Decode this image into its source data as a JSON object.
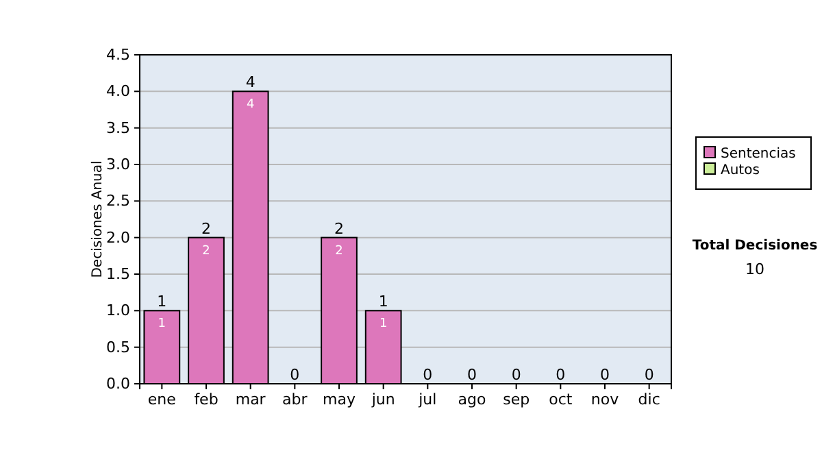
{
  "chart_data": {
    "type": "bar",
    "stacked": true,
    "ylabel": "Decisiones Anual",
    "categories": [
      "ene",
      "feb",
      "mar",
      "abr",
      "may",
      "jun",
      "jul",
      "ago",
      "sep",
      "oct",
      "nov",
      "dic"
    ],
    "series": [
      {
        "name": "Sentencias",
        "color": "#dd77bb",
        "values": [
          1,
          2,
          4,
          0,
          2,
          1,
          0,
          0,
          0,
          0,
          0,
          0
        ],
        "value_labels": [
          "1",
          "2",
          "4",
          null,
          "2",
          "1",
          null,
          null,
          null,
          null,
          null,
          null
        ]
      },
      {
        "name": "Autos",
        "color": "#ccee99",
        "values": [
          0,
          0,
          0,
          0,
          0,
          0,
          0,
          0,
          0,
          0,
          0,
          0
        ]
      }
    ],
    "totals": [
      "1",
      "2",
      "4",
      "0",
      "2",
      "1",
      "0",
      "0",
      "0",
      "0",
      "0",
      "0"
    ],
    "ylim": [
      0,
      4.5
    ],
    "yticks": [
      {
        "value": 0,
        "label": "0.0"
      },
      {
        "value": 0.5,
        "label": "0.5"
      },
      {
        "value": 1,
        "label": "1.0"
      },
      {
        "value": 1.5,
        "label": "1.5"
      },
      {
        "value": 2,
        "label": "2.0"
      },
      {
        "value": 2.5,
        "label": "2.5"
      },
      {
        "value": 3,
        "label": "3.0"
      },
      {
        "value": 3.5,
        "label": "3.5"
      },
      {
        "value": 4,
        "label": "4.0"
      },
      {
        "value": 4.5,
        "label": "4.5"
      }
    ],
    "grid": "y",
    "legend": "right",
    "annotations": [
      "Total Decisiones",
      "10"
    ]
  }
}
